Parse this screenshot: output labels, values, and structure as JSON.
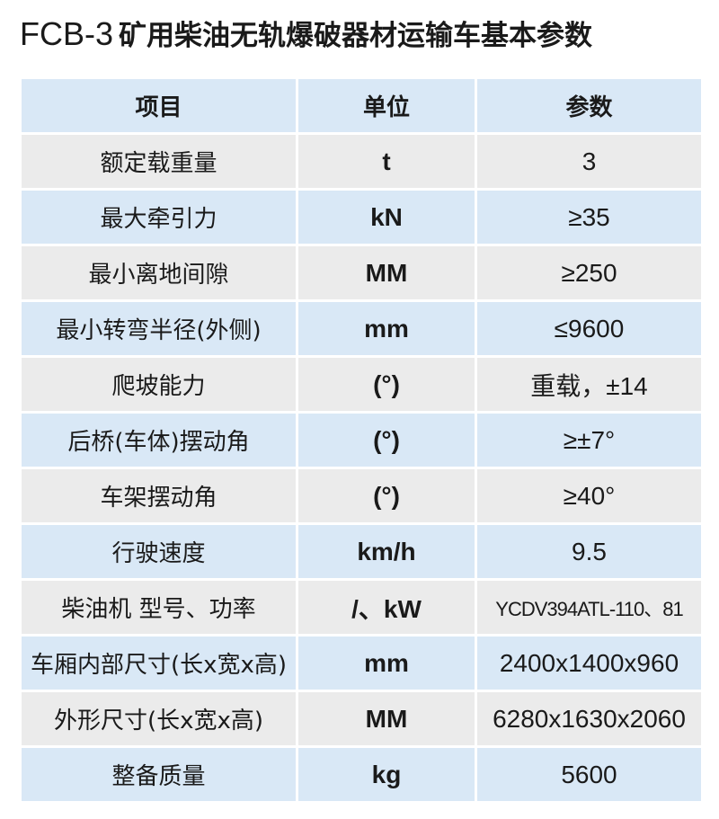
{
  "title": {
    "model": "FCB-3",
    "text": "矿用柴油无轨爆破器材运输车基本参数"
  },
  "table": {
    "headers": [
      "项目",
      "单位",
      "参数"
    ],
    "rows": [
      {
        "item": "额定载重量",
        "unit": "t",
        "value": "3"
      },
      {
        "item": "最大牵引力",
        "unit": "kN",
        "value": "≥35"
      },
      {
        "item": "最小离地间隙",
        "unit": "MM",
        "value": "≥250"
      },
      {
        "item": "最小转弯半径(外侧)",
        "unit": "mm",
        "value": "≤9600"
      },
      {
        "item": "爬坡能力",
        "unit": "(°)",
        "value": "重载，±14"
      },
      {
        "item": "后桥(车体)摆动角",
        "unit": "(°)",
        "value": "≥±7°"
      },
      {
        "item": "车架摆动角",
        "unit": "(°)",
        "value": "≥40°"
      },
      {
        "item": "行驶速度",
        "unit": "km/h",
        "value": "9.5"
      },
      {
        "item": "柴油机 型号、功率",
        "unit": "/、kW",
        "value": "YCDV394ATL-110、81"
      },
      {
        "item": "车厢内部尺寸(长x宽x高)",
        "unit": "mm",
        "value": "2400x1400x960"
      },
      {
        "item": "外形尺寸(长x宽x高)",
        "unit": "MM",
        "value": "6280x1630x2060"
      },
      {
        "item": "整备质量",
        "unit": "kg",
        "value": "5600"
      }
    ]
  },
  "colors": {
    "row_blue": "#d9e8f6",
    "row_grey": "#ebebeb",
    "text": "#1a1a1a"
  }
}
